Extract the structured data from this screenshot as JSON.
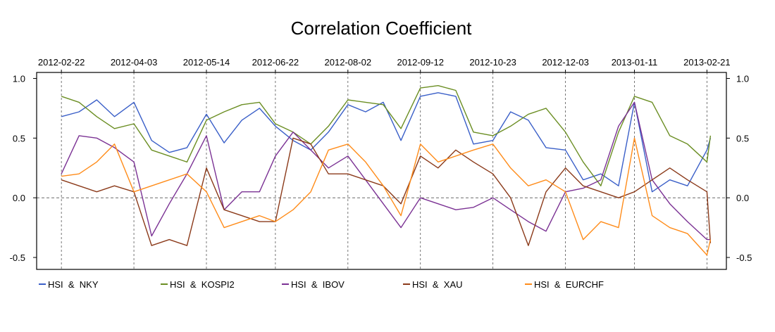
{
  "chart_data": {
    "type": "line",
    "title": "Correlation Coefficient",
    "xlabel": "",
    "ylabel": "",
    "ylim": [
      -0.6,
      1.05
    ],
    "y_ticks": [
      -0.5,
      0.0,
      0.5,
      1.0
    ],
    "y_tick_labels": [
      "-0.5",
      "0.0",
      "0.5",
      "1.0"
    ],
    "x_ticks": [
      "2012-02-22",
      "2012-04-03",
      "2012-05-14",
      "2012-06-22",
      "2012-08-02",
      "2012-09-12",
      "2012-10-23",
      "2012-12-03",
      "2013-01-11",
      "2013-02-21"
    ],
    "x_range": [
      "2012-02-08",
      "2013-03-04"
    ],
    "grid": "vertical dashed lines at each date tick, horizontal dashed line at 0.0",
    "legend_position": "bottom",
    "x": [
      "2012-02-22",
      "2012-03-03",
      "2012-03-13",
      "2012-03-23",
      "2012-04-03",
      "2012-04-13",
      "2012-04-23",
      "2012-05-03",
      "2012-05-14",
      "2012-05-24",
      "2012-06-03",
      "2012-06-13",
      "2012-06-22",
      "2012-07-02",
      "2012-07-12",
      "2012-07-22",
      "2012-08-02",
      "2012-08-12",
      "2012-08-22",
      "2012-09-01",
      "2012-09-12",
      "2012-09-22",
      "2012-10-02",
      "2012-10-12",
      "2012-10-23",
      "2012-11-02",
      "2012-11-12",
      "2012-11-22",
      "2012-12-03",
      "2012-12-13",
      "2012-12-23",
      "2013-01-02",
      "2013-01-11",
      "2013-01-21",
      "2013-01-31",
      "2013-02-10",
      "2013-02-21",
      "2013-02-23"
    ],
    "series": [
      {
        "name": "HSI  &  NKY",
        "color": "#3A5FC8",
        "values": [
          0.68,
          0.72,
          0.82,
          0.68,
          0.8,
          0.48,
          0.38,
          0.42,
          0.7,
          0.46,
          0.65,
          0.75,
          0.6,
          0.48,
          0.4,
          0.55,
          0.78,
          0.72,
          0.8,
          0.48,
          0.85,
          0.88,
          0.85,
          0.45,
          0.48,
          0.72,
          0.65,
          0.42,
          0.4,
          0.15,
          0.2,
          0.1,
          0.8,
          0.05,
          0.15,
          0.1,
          0.4,
          0.5
        ]
      },
      {
        "name": "HSI  &  KOSPI2",
        "color": "#6B8E23",
        "values": [
          0.85,
          0.8,
          0.68,
          0.58,
          0.62,
          0.4,
          0.35,
          0.3,
          0.65,
          0.72,
          0.78,
          0.8,
          0.62,
          0.55,
          0.45,
          0.6,
          0.82,
          0.8,
          0.78,
          0.58,
          0.92,
          0.94,
          0.9,
          0.55,
          0.52,
          0.6,
          0.7,
          0.75,
          0.55,
          0.3,
          0.1,
          0.55,
          0.85,
          0.8,
          0.52,
          0.45,
          0.3,
          0.52
        ]
      },
      {
        "name": "HSI  &  IBOV",
        "color": "#7B3294",
        "values": [
          0.2,
          0.52,
          0.5,
          0.42,
          0.3,
          -0.32,
          -0.05,
          0.2,
          0.52,
          -0.1,
          0.05,
          0.05,
          0.35,
          0.55,
          0.4,
          0.25,
          0.35,
          0.15,
          -0.05,
          -0.25,
          0.0,
          -0.05,
          -0.1,
          -0.08,
          0.0,
          -0.1,
          -0.2,
          -0.28,
          0.05,
          0.08,
          0.15,
          0.6,
          0.8,
          0.15,
          -0.05,
          -0.2,
          -0.35,
          -0.35
        ]
      },
      {
        "name": "HSI  &  XAU",
        "color": "#8B3A1A",
        "values": [
          0.15,
          0.1,
          0.05,
          0.1,
          0.05,
          -0.4,
          -0.35,
          -0.4,
          0.25,
          -0.1,
          -0.15,
          -0.2,
          -0.2,
          0.5,
          0.45,
          0.2,
          0.2,
          0.15,
          0.1,
          -0.05,
          0.35,
          0.25,
          0.4,
          0.3,
          0.2,
          0.0,
          -0.4,
          0.05,
          0.25,
          0.1,
          0.05,
          0.0,
          0.05,
          0.15,
          0.25,
          0.15,
          0.05,
          -0.38
        ]
      },
      {
        "name": "HSI  &  EURCHF",
        "color": "#FF8C1A",
        "values": [
          0.18,
          0.2,
          0.3,
          0.45,
          0.05,
          0.1,
          0.15,
          0.2,
          0.05,
          -0.25,
          -0.2,
          -0.15,
          -0.2,
          -0.1,
          0.05,
          0.4,
          0.45,
          0.3,
          0.1,
          -0.15,
          0.45,
          0.3,
          0.35,
          0.4,
          0.45,
          0.25,
          0.1,
          0.15,
          0.05,
          -0.35,
          -0.2,
          -0.25,
          0.5,
          -0.15,
          -0.25,
          -0.3,
          -0.48,
          -0.35
        ]
      }
    ]
  }
}
